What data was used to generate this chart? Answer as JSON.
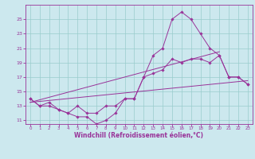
{
  "xlabel": "Windchill (Refroidissement éolien,°C)",
  "bg_color": "#cce8ee",
  "grid_color": "#99cccc",
  "line_color": "#993399",
  "line1": [
    14,
    13,
    13,
    12.5,
    12,
    11.5,
    11.5,
    10.5,
    11,
    12,
    14,
    14,
    17,
    20,
    21,
    25,
    26,
    25,
    23,
    21,
    20,
    17,
    17,
    16
  ],
  "line2": [
    14,
    13,
    13.5,
    12.5,
    12,
    13,
    12,
    12,
    13,
    13,
    14,
    14,
    17,
    17.5,
    18,
    19.5,
    19,
    19.5,
    19.5,
    19,
    20,
    17,
    17,
    16
  ],
  "trend1_x": [
    0,
    23
  ],
  "trend1_y": [
    13.5,
    16.5
  ],
  "trend2_x": [
    0,
    20
  ],
  "trend2_y": [
    13.5,
    20.5
  ],
  "hours": [
    0,
    1,
    2,
    3,
    4,
    5,
    6,
    7,
    8,
    9,
    10,
    11,
    12,
    13,
    14,
    15,
    16,
    17,
    18,
    19,
    20,
    21,
    22,
    23
  ],
  "ylim": [
    10.5,
    27.0
  ],
  "xlim": [
    -0.5,
    23.5
  ],
  "yticks": [
    11,
    13,
    15,
    17,
    19,
    21,
    23,
    25
  ],
  "xticks": [
    0,
    1,
    2,
    3,
    4,
    5,
    6,
    7,
    8,
    9,
    10,
    11,
    12,
    13,
    14,
    15,
    16,
    17,
    18,
    19,
    20,
    21,
    22,
    23
  ]
}
